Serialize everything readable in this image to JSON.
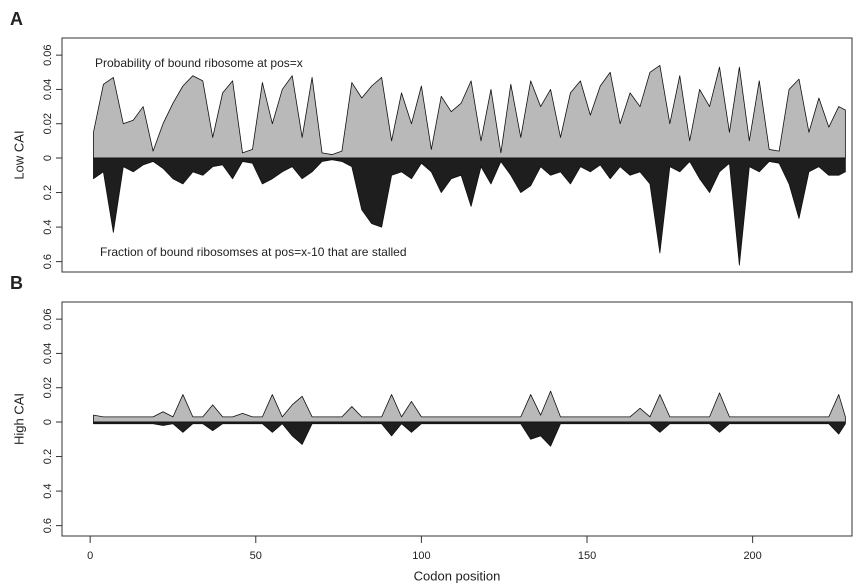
{
  "chart_data": [
    {
      "type": "mirror-area",
      "panel": "A",
      "y_label": "Low CAI",
      "annotations": [
        "Probability of bound ribosome at pos=x",
        "Fraction of bound ribosomses at pos=x-10 that are stalled"
      ],
      "xlim": [
        -8.5,
        230
      ],
      "ylim": [
        0,
        0.07
      ],
      "y2lim": [
        0,
        0.66
      ],
      "yticks": [
        0,
        0.02,
        0.04,
        0.06
      ],
      "y2ticks": [
        0.2,
        0.4,
        0.6
      ],
      "x": [
        1,
        4,
        7,
        10,
        13,
        16,
        19,
        22,
        25,
        28,
        31,
        34,
        37,
        40,
        43,
        46,
        49,
        52,
        55,
        58,
        61,
        64,
        67,
        70,
        73,
        76,
        79,
        82,
        85,
        88,
        91,
        94,
        97,
        100,
        103,
        106,
        109,
        112,
        115,
        118,
        121,
        124,
        127,
        130,
        133,
        136,
        139,
        142,
        145,
        148,
        151,
        154,
        157,
        160,
        163,
        166,
        169,
        172,
        175,
        178,
        181,
        184,
        187,
        190,
        193,
        196,
        199,
        202,
        205,
        208,
        211,
        214,
        217,
        220,
        223,
        226,
        228
      ],
      "series": [
        {
          "color": "#b9b9b9",
          "axis": "y",
          "values": [
            0.015,
            0.043,
            0.047,
            0.02,
            0.022,
            0.03,
            0.004,
            0.02,
            0.032,
            0.042,
            0.048,
            0.045,
            0.012,
            0.038,
            0.045,
            0.003,
            0.005,
            0.044,
            0.02,
            0.04,
            0.048,
            0.012,
            0.047,
            0.003,
            0.002,
            0.004,
            0.044,
            0.035,
            0.042,
            0.047,
            0.01,
            0.038,
            0.02,
            0.042,
            0.005,
            0.036,
            0.027,
            0.032,
            0.045,
            0.01,
            0.04,
            0.003,
            0.043,
            0.012,
            0.045,
            0.03,
            0.04,
            0.012,
            0.038,
            0.045,
            0.025,
            0.042,
            0.05,
            0.02,
            0.038,
            0.03,
            0.05,
            0.054,
            0.02,
            0.048,
            0.01,
            0.04,
            0.03,
            0.053,
            0.015,
            0.053,
            0.01,
            0.045,
            0.005,
            0.004,
            0.04,
            0.046,
            0.015,
            0.035,
            0.018,
            0.03,
            0.028
          ]
        },
        {
          "color": "#1e1e1e",
          "axis": "y2",
          "values": [
            0.12,
            0.08,
            0.43,
            0.05,
            0.08,
            0.04,
            0.02,
            0.06,
            0.12,
            0.15,
            0.08,
            0.1,
            0.05,
            0.04,
            0.12,
            0.02,
            0.03,
            0.15,
            0.12,
            0.08,
            0.05,
            0.12,
            0.08,
            0.02,
            0.01,
            0.02,
            0.05,
            0.3,
            0.38,
            0.4,
            0.1,
            0.08,
            0.12,
            0.03,
            0.08,
            0.2,
            0.12,
            0.1,
            0.28,
            0.05,
            0.15,
            0.02,
            0.1,
            0.2,
            0.16,
            0.05,
            0.1,
            0.08,
            0.15,
            0.05,
            0.08,
            0.04,
            0.12,
            0.05,
            0.1,
            0.08,
            0.15,
            0.55,
            0.05,
            0.08,
            0.02,
            0.12,
            0.2,
            0.08,
            0.03,
            0.62,
            0.05,
            0.08,
            0.02,
            0.03,
            0.15,
            0.35,
            0.08,
            0.05,
            0.1,
            0.1,
            0.08
          ]
        }
      ]
    },
    {
      "type": "mirror-area",
      "panel": "B",
      "y_label": "High CAI",
      "x_label": "Codon position",
      "xlim": [
        -8.5,
        230
      ],
      "ylim": [
        0,
        0.07
      ],
      "y2lim": [
        0,
        0.66
      ],
      "xticks": [
        0,
        50,
        100,
        150,
        200
      ],
      "yticks": [
        0,
        0.02,
        0.04,
        0.06
      ],
      "y2ticks": [
        0.2,
        0.4,
        0.6
      ],
      "x": [
        1,
        4,
        7,
        10,
        13,
        16,
        19,
        22,
        25,
        28,
        31,
        34,
        37,
        40,
        43,
        46,
        49,
        52,
        55,
        58,
        61,
        64,
        67,
        70,
        73,
        76,
        79,
        82,
        85,
        88,
        91,
        94,
        97,
        100,
        103,
        106,
        109,
        112,
        115,
        118,
        121,
        124,
        127,
        130,
        133,
        136,
        139,
        142,
        145,
        148,
        151,
        154,
        157,
        160,
        163,
        166,
        169,
        172,
        175,
        178,
        181,
        184,
        187,
        190,
        193,
        196,
        199,
        202,
        205,
        208,
        211,
        214,
        217,
        220,
        223,
        226,
        228
      ],
      "series": [
        {
          "color": "#b9b9b9",
          "axis": "y",
          "values": [
            0.004,
            0.003,
            0.003,
            0.003,
            0.003,
            0.003,
            0.003,
            0.006,
            0.003,
            0.016,
            0.003,
            0.003,
            0.01,
            0.003,
            0.003,
            0.005,
            0.003,
            0.003,
            0.016,
            0.003,
            0.01,
            0.015,
            0.003,
            0.003,
            0.003,
            0.003,
            0.009,
            0.003,
            0.003,
            0.003,
            0.016,
            0.003,
            0.012,
            0.003,
            0.003,
            0.003,
            0.003,
            0.003,
            0.003,
            0.003,
            0.003,
            0.003,
            0.003,
            0.003,
            0.016,
            0.004,
            0.018,
            0.003,
            0.003,
            0.003,
            0.003,
            0.003,
            0.003,
            0.003,
            0.003,
            0.008,
            0.003,
            0.016,
            0.003,
            0.003,
            0.003,
            0.003,
            0.003,
            0.017,
            0.003,
            0.003,
            0.003,
            0.003,
            0.003,
            0.003,
            0.003,
            0.003,
            0.003,
            0.003,
            0.003,
            0.016,
            0.003
          ]
        },
        {
          "color": "#1e1e1e",
          "axis": "y2",
          "values": [
            0.01,
            0.01,
            0.01,
            0.01,
            0.01,
            0.01,
            0.01,
            0.02,
            0.01,
            0.06,
            0.01,
            0.01,
            0.05,
            0.01,
            0.01,
            0.01,
            0.01,
            0.01,
            0.06,
            0.01,
            0.08,
            0.13,
            0.01,
            0.01,
            0.01,
            0.01,
            0.01,
            0.01,
            0.01,
            0.01,
            0.08,
            0.01,
            0.06,
            0.01,
            0.01,
            0.01,
            0.01,
            0.01,
            0.01,
            0.01,
            0.01,
            0.01,
            0.01,
            0.01,
            0.1,
            0.08,
            0.14,
            0.01,
            0.01,
            0.01,
            0.01,
            0.01,
            0.01,
            0.01,
            0.01,
            0.01,
            0.01,
            0.06,
            0.01,
            0.01,
            0.01,
            0.01,
            0.01,
            0.06,
            0.01,
            0.01,
            0.01,
            0.01,
            0.01,
            0.01,
            0.01,
            0.01,
            0.01,
            0.01,
            0.01,
            0.07,
            0.01
          ]
        }
      ]
    }
  ]
}
